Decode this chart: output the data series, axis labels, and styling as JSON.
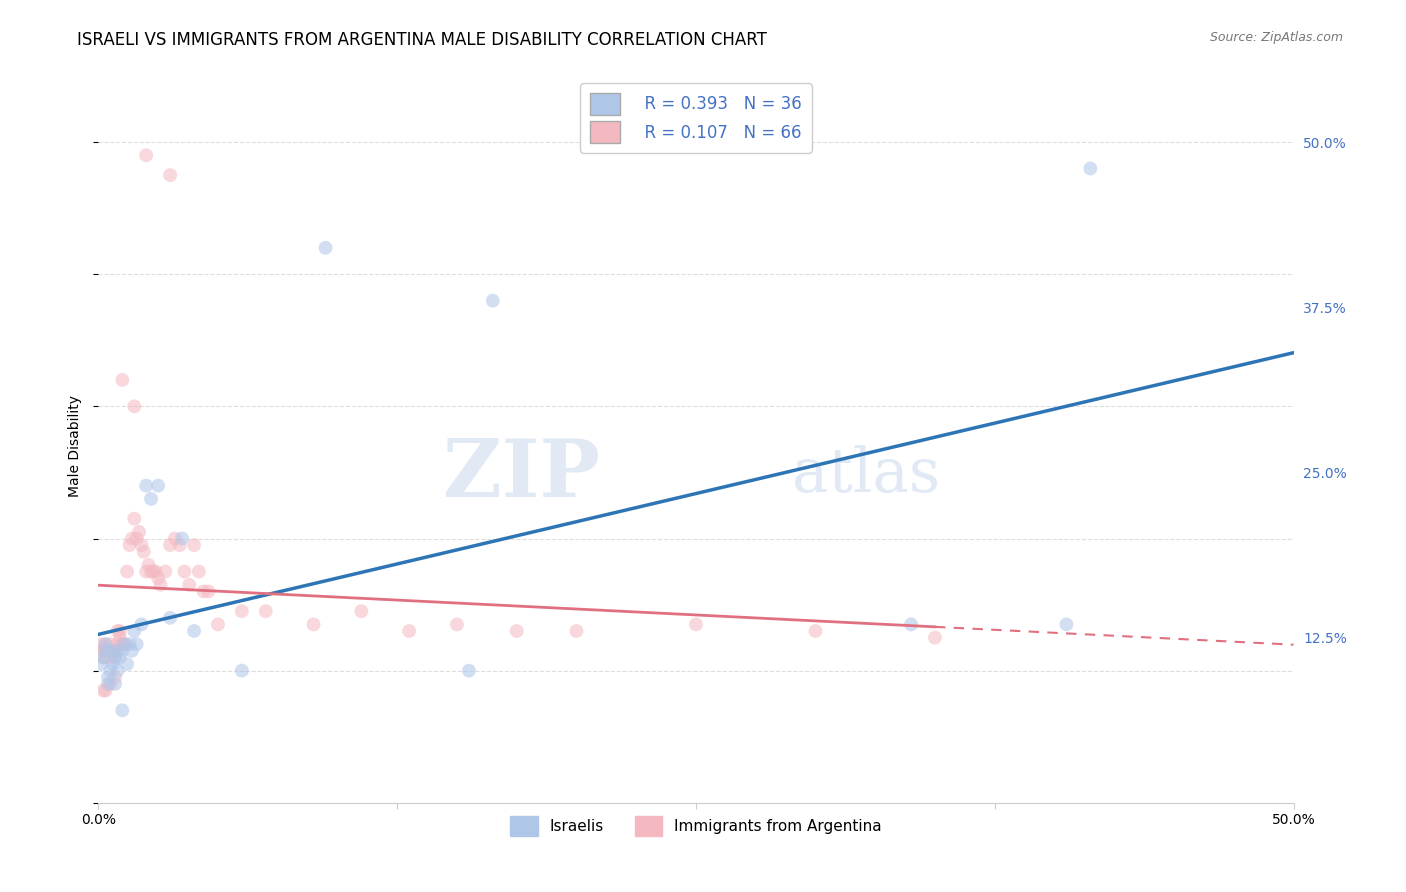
{
  "title": "ISRAELI VS IMMIGRANTS FROM ARGENTINA MALE DISABILITY CORRELATION CHART",
  "source": "Source: ZipAtlas.com",
  "ylabel": "Male Disability",
  "xlim": [
    0.0,
    0.5
  ],
  "ylim": [
    0.0,
    0.54
  ],
  "xtick_labels": [
    "0.0%",
    "",
    "",
    "",
    "50.0%"
  ],
  "xtick_vals": [
    0.0,
    0.125,
    0.25,
    0.375,
    0.5
  ],
  "right_ytick_labels": [
    "50.0%",
    "37.5%",
    "25.0%",
    "12.5%"
  ],
  "right_ytick_vals": [
    0.5,
    0.375,
    0.25,
    0.125
  ],
  "blue_R": 0.393,
  "blue_N": 36,
  "pink_R": 0.107,
  "pink_N": 66,
  "blue_color": "#AEC6E8",
  "pink_color": "#F4B8C1",
  "blue_line_color": "#2E75B6",
  "pink_line_color": "#E07080",
  "watermark_zip": "ZIP",
  "watermark_atlas": "atlas",
  "legend_label_1": "Israelis",
  "legend_label_2": "Immigrants from Argentina",
  "blue_scatter_x": [
    0.001,
    0.002,
    0.003,
    0.003,
    0.004,
    0.005,
    0.005,
    0.006,
    0.007,
    0.008,
    0.008,
    0.009,
    0.01,
    0.011,
    0.012,
    0.013,
    0.014,
    0.015,
    0.016,
    0.018,
    0.02,
    0.022,
    0.025,
    0.03,
    0.035,
    0.04,
    0.06,
    0.095,
    0.155,
    0.165,
    0.34,
    0.405,
    0.415,
    0.004,
    0.007,
    0.01
  ],
  "blue_scatter_y": [
    0.105,
    0.11,
    0.115,
    0.12,
    0.095,
    0.1,
    0.115,
    0.105,
    0.11,
    0.1,
    0.115,
    0.11,
    0.115,
    0.12,
    0.105,
    0.12,
    0.115,
    0.13,
    0.12,
    0.135,
    0.24,
    0.23,
    0.24,
    0.14,
    0.2,
    0.13,
    0.1,
    0.42,
    0.1,
    0.38,
    0.135,
    0.135,
    0.48,
    0.09,
    0.09,
    0.07
  ],
  "pink_scatter_x": [
    0.001,
    0.001,
    0.002,
    0.002,
    0.003,
    0.003,
    0.004,
    0.004,
    0.005,
    0.005,
    0.006,
    0.006,
    0.007,
    0.007,
    0.008,
    0.008,
    0.009,
    0.009,
    0.01,
    0.01,
    0.011,
    0.012,
    0.013,
    0.014,
    0.015,
    0.016,
    0.017,
    0.018,
    0.019,
    0.02,
    0.021,
    0.022,
    0.023,
    0.024,
    0.025,
    0.026,
    0.028,
    0.03,
    0.032,
    0.034,
    0.036,
    0.038,
    0.04,
    0.042,
    0.044,
    0.046,
    0.05,
    0.06,
    0.07,
    0.09,
    0.11,
    0.13,
    0.15,
    0.175,
    0.2,
    0.25,
    0.3,
    0.35,
    0.002,
    0.003,
    0.005,
    0.007,
    0.01,
    0.015,
    0.02,
    0.03
  ],
  "pink_scatter_y": [
    0.12,
    0.115,
    0.11,
    0.115,
    0.12,
    0.115,
    0.11,
    0.115,
    0.12,
    0.115,
    0.11,
    0.115,
    0.115,
    0.11,
    0.13,
    0.12,
    0.13,
    0.125,
    0.12,
    0.12,
    0.12,
    0.175,
    0.195,
    0.2,
    0.215,
    0.2,
    0.205,
    0.195,
    0.19,
    0.175,
    0.18,
    0.175,
    0.175,
    0.175,
    0.17,
    0.165,
    0.175,
    0.195,
    0.2,
    0.195,
    0.175,
    0.165,
    0.195,
    0.175,
    0.16,
    0.16,
    0.135,
    0.145,
    0.145,
    0.135,
    0.145,
    0.13,
    0.135,
    0.13,
    0.13,
    0.135,
    0.13,
    0.125,
    0.085,
    0.085,
    0.09,
    0.095,
    0.32,
    0.3,
    0.49,
    0.475
  ],
  "grid_color": "#DDDDDD",
  "bg_color": "#FFFFFF",
  "title_fontsize": 12,
  "axis_label_fontsize": 10,
  "tick_fontsize": 10,
  "scatter_size": 100,
  "scatter_alpha": 0.55
}
